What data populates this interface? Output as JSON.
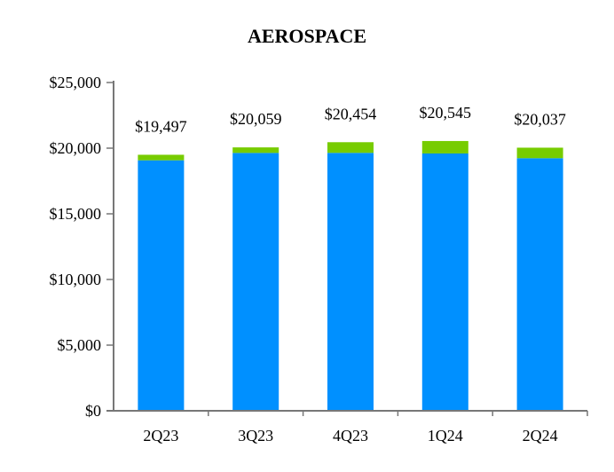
{
  "chart_data": {
    "type": "bar",
    "stacked": true,
    "title": "AEROSPACE",
    "xlabel": "",
    "ylabel": "",
    "categories": [
      "2Q23",
      "3Q23",
      "4Q23",
      "1Q24",
      "2Q24"
    ],
    "series": [
      {
        "values": [
          19077,
          19639,
          19644,
          19595,
          19237
        ],
        "color": "#0090FF"
      },
      {
        "values": [
          420,
          420,
          810,
          950,
          800
        ],
        "color": "#77CC00"
      }
    ],
    "totals": [
      19497,
      20059,
      20454,
      20545,
      20037
    ],
    "total_labels": [
      "$19,497",
      "$20,059",
      "$20,454",
      "$20,545",
      "$20,037"
    ],
    "ylim": [
      0,
      25000
    ],
    "yticks": [
      0,
      5000,
      10000,
      15000,
      20000,
      25000
    ],
    "ytick_labels": [
      "$0",
      "$5,000",
      "$10,000",
      "$15,000",
      "$20,000",
      "$25,000"
    ],
    "grid": false,
    "legend": "none"
  }
}
